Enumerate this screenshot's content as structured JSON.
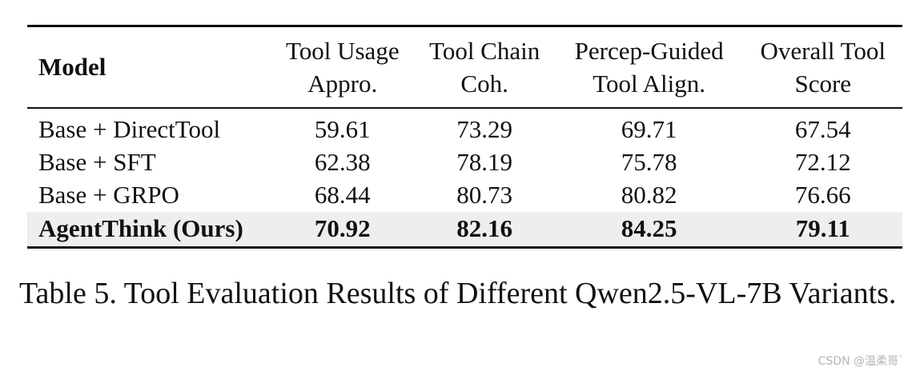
{
  "table": {
    "headers": {
      "model": "Model",
      "metrics": [
        {
          "line1": "Tool Usage",
          "line2": "Appro."
        },
        {
          "line1": "Tool Chain",
          "line2": "Coh."
        },
        {
          "line1": "Percep-Guided",
          "line2": "Tool Align."
        },
        {
          "line1": "Overall Tool",
          "line2": "Score"
        }
      ]
    },
    "rows": [
      {
        "model": "Base + DirectTool",
        "values": [
          "59.61",
          "73.29",
          "69.71",
          "67.54"
        ]
      },
      {
        "model": "Base + SFT",
        "values": [
          "62.38",
          "78.19",
          "75.78",
          "72.12"
        ]
      },
      {
        "model": "Base + GRPO",
        "values": [
          "68.44",
          "80.73",
          "80.82",
          "76.66"
        ]
      },
      {
        "model": "AgentThink (Ours)",
        "values": [
          "70.92",
          "82.16",
          "84.25",
          "79.11"
        ],
        "bold": true
      }
    ]
  },
  "caption": "Table 5.  Tool Evaluation Results of Different Qwen2.5-VL-7B Variants.",
  "watermark": "CSDN @温柔哥`"
}
